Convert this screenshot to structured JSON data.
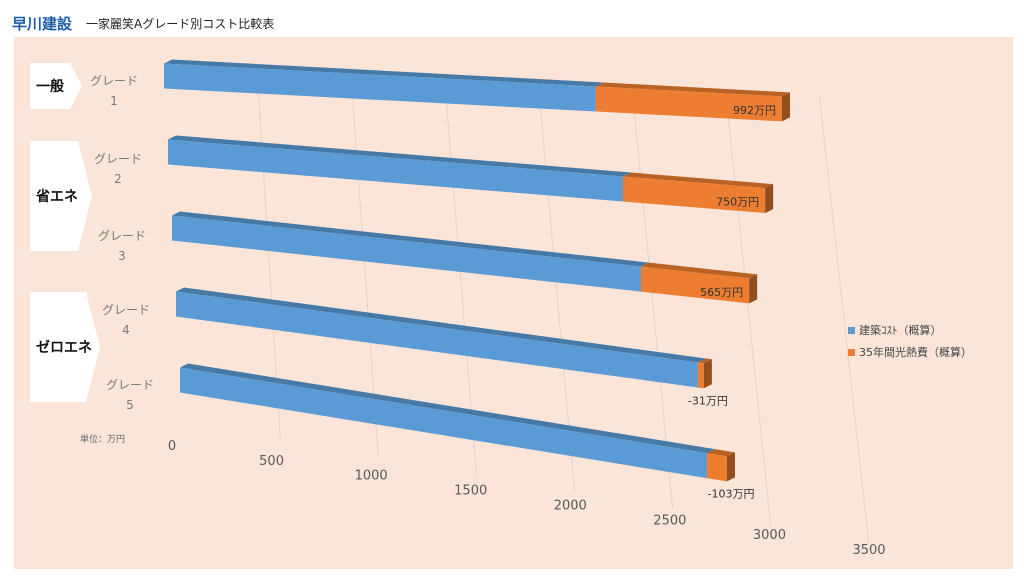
{
  "header": {
    "brand": "早川建設",
    "title": "一家麗笑Aグレード別コスト比較表"
  },
  "groups": [
    {
      "label": "一般"
    },
    {
      "label": "省エネ"
    },
    {
      "label": "ゼロエネ"
    }
  ],
  "unit_label": "単位：万円",
  "colors": {
    "panel_bg": "#fbe5d8",
    "series_build": "#5b9bd5",
    "series_heat": "#ed7d31",
    "brand": "#1f5fa8"
  },
  "chart_data": {
    "type": "bar",
    "orientation": "horizontal",
    "stacked": true,
    "style": "3d",
    "categories": [
      "グレード\n1",
      "グレード\n2",
      "グレード\n3",
      "グレード\n4",
      "グレード\n5"
    ],
    "series": [
      {
        "name": "建築ｺｽﾄ（概算）",
        "values": [
          2300,
          2400,
          2450,
          2700,
          2700
        ]
      },
      {
        "name": "35年間光熱費（概算）",
        "values": [
          992,
          750,
          565,
          -31,
          -103
        ]
      }
    ],
    "data_labels": [
      "992万円",
      "750万円",
      "565万円",
      "-31万円",
      "-103万円"
    ],
    "xticks": [
      "0",
      "500",
      "1000",
      "1500",
      "2000",
      "2500",
      "3000",
      "3500"
    ],
    "xlim": [
      0,
      3500
    ],
    "legend_position": "right",
    "grid": true
  }
}
